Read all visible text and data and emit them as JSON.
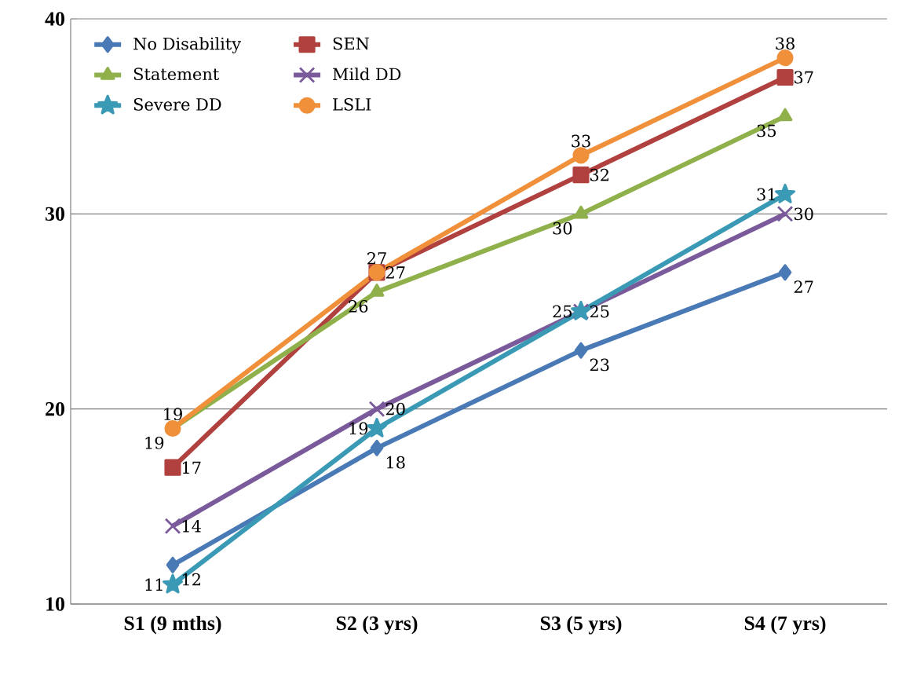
{
  "chart_data": {
    "type": "line",
    "categories": [
      "S1 (9 mths)",
      "S2 (3 yrs)",
      "S3 (5 yrs)",
      "S4 (7 yrs)"
    ],
    "series": [
      {
        "name": "No Disability",
        "color": "#4a7ab5",
        "marker": "diamond",
        "values": [
          12,
          18,
          23,
          27
        ]
      },
      {
        "name": "SEN",
        "color": "#b0413e",
        "marker": "square",
        "values": [
          17,
          27,
          32,
          37
        ]
      },
      {
        "name": "Statement",
        "color": "#8fb04a",
        "marker": "triangle",
        "values": [
          19,
          26,
          30,
          35
        ]
      },
      {
        "name": "Mild DD",
        "color": "#7a5a9a",
        "marker": "cross",
        "values": [
          14,
          20,
          25,
          30
        ]
      },
      {
        "name": "Severe DD",
        "color": "#3a9ab5",
        "marker": "star",
        "values": [
          11,
          19,
          25,
          31
        ]
      },
      {
        "name": "LSLI",
        "color": "#f0903a",
        "marker": "circle",
        "values": [
          19,
          27,
          33,
          38
        ]
      }
    ],
    "ylim": [
      10,
      40
    ],
    "yticks": [
      10,
      20,
      30,
      40
    ],
    "grid": "y",
    "legend": "top left",
    "data_labels": true,
    "line_style": "solid"
  }
}
